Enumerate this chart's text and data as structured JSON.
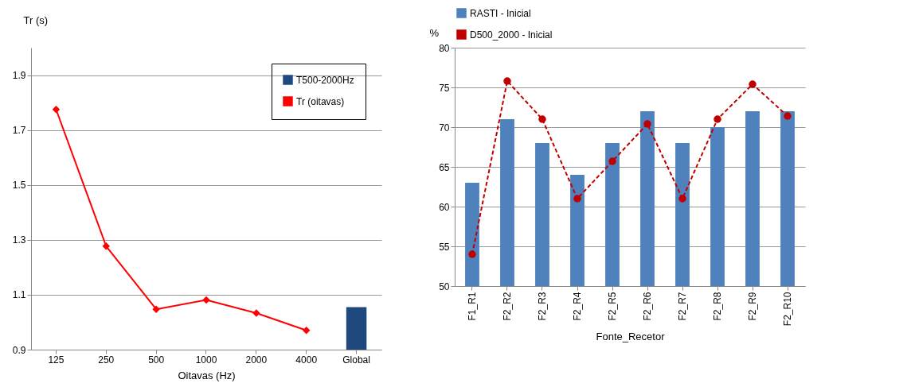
{
  "chart_data": [
    {
      "type": "line",
      "xlabel": "Oitavas (Hz)",
      "ylabel": "Tr (s)",
      "categories": [
        "125",
        "250",
        "500",
        "1000",
        "2000",
        "4000",
        "Global"
      ],
      "series": [
        {
          "name": "T500-2000Hz",
          "type": "bar",
          "color": "#1f497d",
          "values": [
            null,
            null,
            null,
            null,
            null,
            null,
            1.055
          ]
        },
        {
          "name": "Tr (oitavas)",
          "color": "#ff0000",
          "values": [
            1.775,
            1.277,
            1.047,
            1.081,
            1.033,
            0.97,
            null
          ]
        }
      ],
      "ylim": [
        0.9,
        2.0
      ],
      "yticks": [
        0.9,
        1.1,
        1.3,
        1.5,
        1.7,
        1.9
      ],
      "grid": "y",
      "legend": "top right",
      "marker": "diamond",
      "line_style": "solid"
    },
    {
      "type": "bar",
      "xlabel": "Fonte_Recetor",
      "ylabel": "%",
      "categories": [
        "F1_R1",
        "F2_R2",
        "F2_R3",
        "F2_R4",
        "F2_R5",
        "F2_R6",
        "F2_R7",
        "F2_R8",
        "F2_R9",
        "F2_R10"
      ],
      "series": [
        {
          "name": "RASTI - Inicial",
          "color": "#4f81bd",
          "values": [
            63,
            71,
            68,
            64,
            68,
            72,
            68,
            70,
            72,
            72
          ]
        },
        {
          "name": "D500_2000 - Inicial",
          "type": "line",
          "color": "#c00000",
          "values": [
            54,
            75.8,
            71,
            61,
            65.7,
            70.4,
            61,
            71,
            75.4,
            71.4
          ]
        }
      ],
      "ylim": [
        50,
        80
      ],
      "yticks": [
        50,
        55,
        60,
        65,
        70,
        75,
        80
      ],
      "grid": "y",
      "legend": "top",
      "marker": "circle",
      "line_style": "dashed"
    }
  ]
}
